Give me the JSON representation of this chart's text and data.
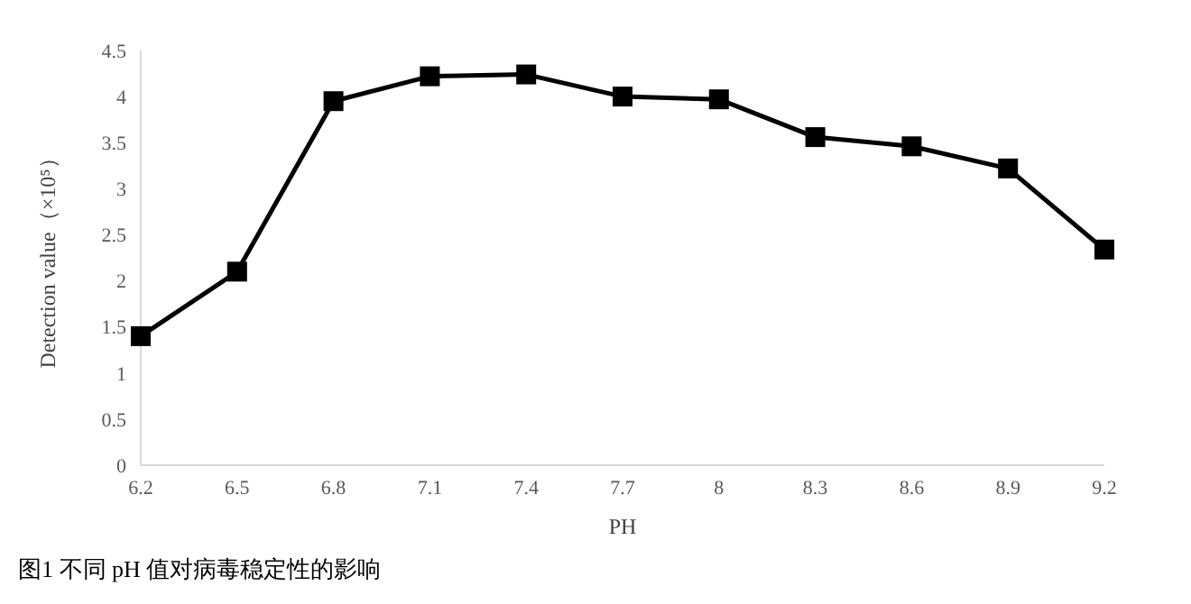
{
  "chart_data": {
    "type": "line",
    "xlabel": "PH",
    "ylabel": "Detection value（×10⁵）",
    "categories": [
      "6.2",
      "6.5",
      "6.8",
      "7.1",
      "7.4",
      "7.7",
      "8",
      "8.3",
      "8.6",
      "8.9",
      "9.2"
    ],
    "series": [
      {
        "color": "#000000",
        "values": [
          1.4,
          2.1,
          3.95,
          4.22,
          4.24,
          4.0,
          3.97,
          3.56,
          3.46,
          3.22,
          2.34
        ]
      }
    ],
    "ylim": [
      0,
      4.5
    ],
    "yticks": [
      0,
      0.5,
      1,
      1.5,
      2,
      2.5,
      3,
      3.5,
      4,
      4.5
    ],
    "grid": false,
    "legend": false,
    "marker": "square",
    "line_style": "solid",
    "annotations": [
      "图1 不同 pH 值对病毒稳定性的影响"
    ]
  }
}
